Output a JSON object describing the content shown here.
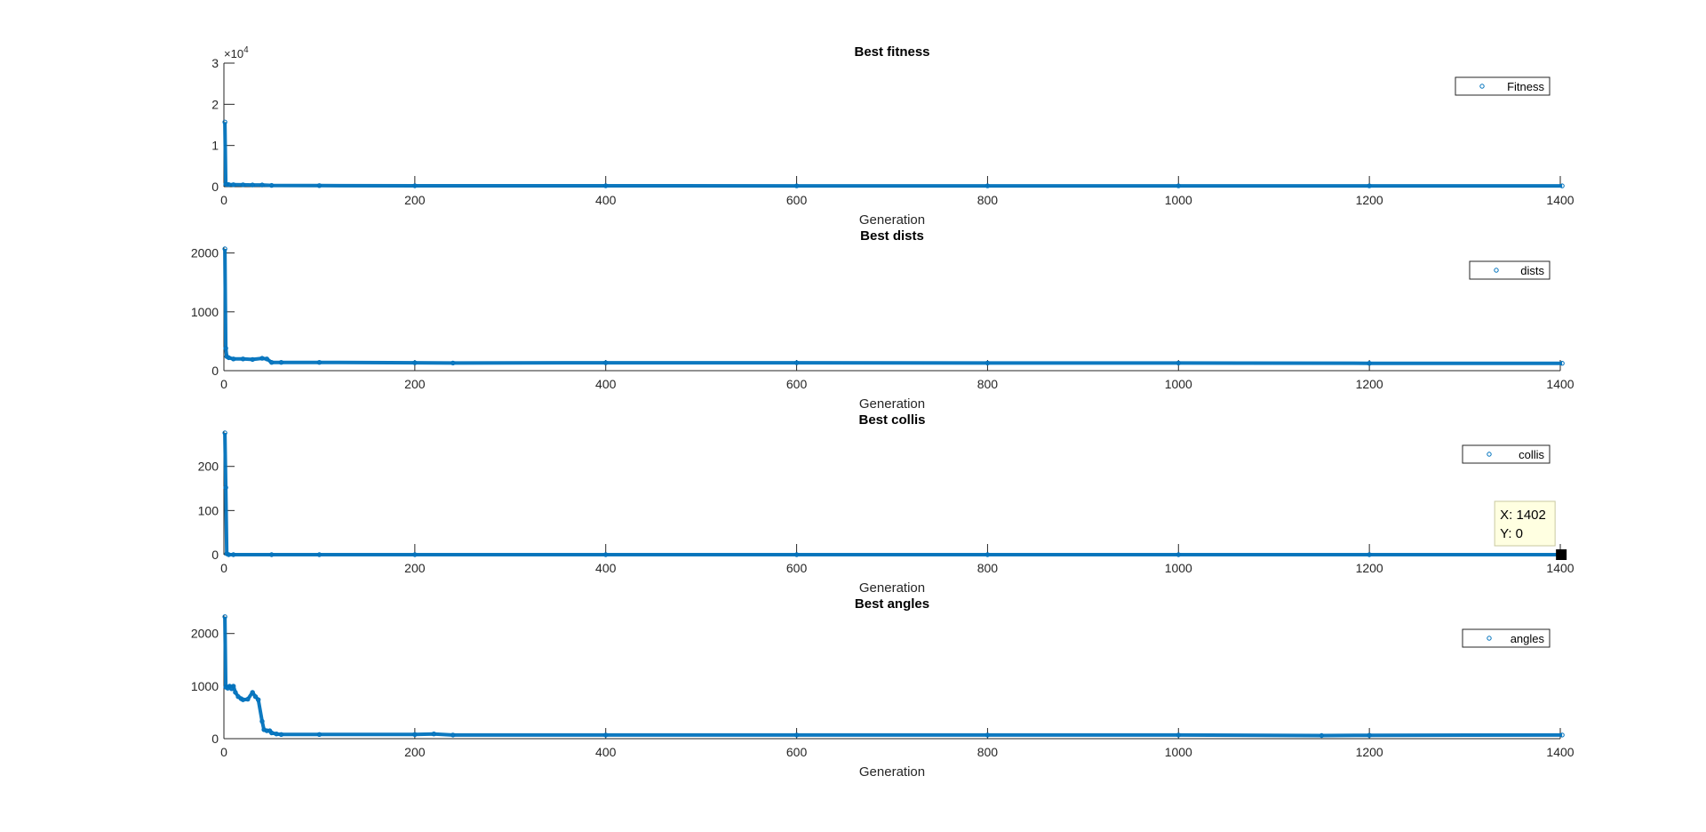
{
  "figure": {
    "background": "#ffffff",
    "series_color": "#0072BD",
    "axis_color": "#262626"
  },
  "chart_data": [
    {
      "type": "scatter",
      "title": "Best fitness",
      "xlabel": "Generation",
      "ylabel": "",
      "xlim": [
        0,
        1400
      ],
      "ylim": [
        0,
        30000
      ],
      "x_ticks": [
        "0",
        "200",
        "400",
        "600",
        "800",
        "1000",
        "1200",
        "1400"
      ],
      "y_ticks": [
        "0",
        "1",
        "2",
        "3"
      ],
      "y_exponent_label": "×10",
      "y_exponent_power": "4",
      "legend": {
        "label": "Fitness",
        "location": "top-right"
      },
      "series": [
        {
          "name": "Fitness",
          "x": [
            1,
            2,
            3,
            5,
            10,
            20,
            30,
            40,
            50,
            100,
            200,
            400,
            600,
            800,
            1000,
            1200,
            1402
          ],
          "y": [
            15700,
            600,
            550,
            500,
            480,
            450,
            420,
            400,
            300,
            250,
            220,
            210,
            200,
            200,
            200,
            200,
            200
          ],
          "marker": "circle"
        }
      ]
    },
    {
      "type": "scatter",
      "title": "Best dists",
      "xlabel": "Generation",
      "ylabel": "",
      "xlim": [
        0,
        1400
      ],
      "ylim": [
        0,
        2100
      ],
      "x_ticks": [
        "0",
        "200",
        "400",
        "600",
        "800",
        "1000",
        "1200",
        "1400"
      ],
      "y_ticks": [
        "0",
        "1000",
        "2000"
      ],
      "legend": {
        "label": "dists",
        "location": "top-right"
      },
      "series": [
        {
          "name": "dists",
          "x": [
            1,
            2,
            3,
            5,
            10,
            20,
            30,
            40,
            45,
            50,
            60,
            100,
            200,
            240,
            400,
            600,
            800,
            1000,
            1200,
            1402
          ],
          "y": [
            2070,
            380,
            240,
            220,
            200,
            200,
            190,
            210,
            200,
            140,
            140,
            140,
            135,
            130,
            135,
            135,
            130,
            130,
            125,
            125
          ],
          "marker": "circle"
        }
      ]
    },
    {
      "type": "scatter",
      "title": "Best collis",
      "xlabel": "Generation",
      "ylabel": "",
      "xlim": [
        0,
        1400
      ],
      "ylim": [
        0,
        280
      ],
      "x_ticks": [
        "0",
        "200",
        "400",
        "600",
        "800",
        "1000",
        "1200",
        "1400"
      ],
      "y_ticks": [
        "0",
        "100",
        "200"
      ],
      "legend": {
        "label": "collis",
        "location": "top-right"
      },
      "series": [
        {
          "name": "collis",
          "x": [
            1,
            2,
            3,
            5,
            10,
            50,
            100,
            200,
            400,
            600,
            800,
            1000,
            1200,
            1402
          ],
          "y": [
            276,
            152,
            2,
            0,
            0,
            0,
            0,
            0,
            0,
            0,
            0,
            0,
            0,
            0
          ],
          "marker": "circle"
        }
      ],
      "datatip": {
        "x_text": "X: 1402",
        "y_text": "Y: 0",
        "x": 1402,
        "y": 0
      }
    },
    {
      "type": "scatter",
      "title": "Best angles",
      "xlabel": "Generation",
      "ylabel": "",
      "xlim": [
        0,
        1400
      ],
      "ylim": [
        0,
        2350
      ],
      "x_ticks": [
        "0",
        "200",
        "400",
        "600",
        "800",
        "1000",
        "1200",
        "1400"
      ],
      "y_ticks": [
        "0",
        "1000",
        "2000"
      ],
      "legend": {
        "label": "angles",
        "location": "top-right"
      },
      "series": [
        {
          "name": "angles",
          "x": [
            1,
            2,
            4,
            6,
            8,
            10,
            12,
            15,
            18,
            20,
            25,
            30,
            33,
            36,
            40,
            42,
            45,
            48,
            50,
            55,
            60,
            100,
            200,
            220,
            240,
            400,
            600,
            800,
            1000,
            1150,
            1200,
            1402
          ],
          "y": [
            2320,
            980,
            960,
            1000,
            950,
            1000,
            880,
            800,
            760,
            740,
            750,
            880,
            800,
            740,
            330,
            170,
            150,
            150,
            110,
            90,
            80,
            80,
            80,
            90,
            70,
            70,
            70,
            70,
            70,
            60,
            65,
            70
          ],
          "marker": "circle"
        }
      ]
    }
  ]
}
